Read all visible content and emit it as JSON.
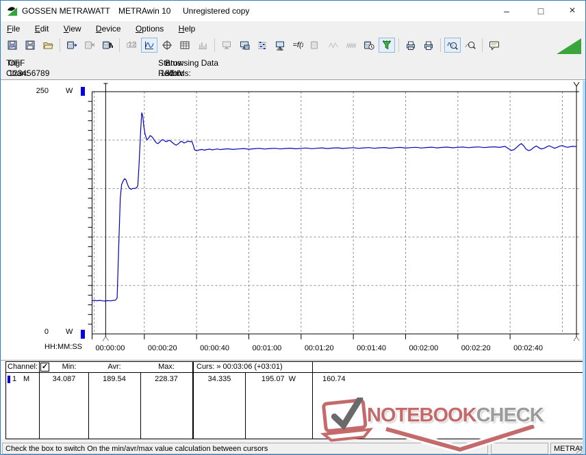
{
  "window": {
    "app_name": "GOSSEN METRAWATT",
    "product": "METRAwin 10",
    "license": "Unregistered copy",
    "minimize": "–",
    "maximize": "□",
    "close": "×"
  },
  "menu": {
    "items": [
      "File",
      "Edit",
      "View",
      "Device",
      "Options",
      "Help"
    ]
  },
  "toolbar": {
    "groups": [
      [
        {
          "name": "save-curve-button",
          "icon": "savewave",
          "state": "normal"
        },
        {
          "name": "save-button",
          "icon": "disk",
          "state": "normal"
        },
        {
          "name": "open-button",
          "icon": "folder",
          "state": "normal"
        }
      ],
      [
        {
          "name": "device-read-button",
          "icon": "devarrow",
          "state": "normal"
        },
        {
          "name": "device-stop-button",
          "icon": "devx",
          "state": "disabled"
        },
        {
          "name": "device-memory-button",
          "icon": "devm",
          "state": "normal"
        }
      ],
      [
        {
          "name": "lcd-view-button",
          "icon": "lcd",
          "state": "disabled"
        },
        {
          "name": "chart-view-button",
          "icon": "wave",
          "state": "pressed"
        },
        {
          "name": "xy-view-button",
          "icon": "cross",
          "state": "normal"
        },
        {
          "name": "table-view-button",
          "icon": "grid",
          "state": "normal"
        },
        {
          "name": "bargraph-view-button",
          "icon": "bars",
          "state": "disabled"
        }
      ],
      [
        {
          "name": "monitor-export-button",
          "icon": "monitor",
          "state": "disabled"
        },
        {
          "name": "monitor-save-button",
          "icon": "monitordisk",
          "state": "normal"
        },
        {
          "name": "channel-list-button",
          "icon": "chanlist",
          "state": "normal"
        },
        {
          "name": "monitor-settings-button",
          "icon": "monitorslide",
          "state": "normal"
        },
        {
          "name": "formula-button",
          "icon": "fx",
          "state": "normal"
        },
        {
          "name": "device-settings-button",
          "icon": "devgray",
          "state": "disabled"
        },
        {
          "name": "wave-low-button",
          "icon": "wavesm",
          "state": "disabled"
        },
        {
          "name": "wave-dense-button",
          "icon": "wavedense",
          "state": "disabled"
        },
        {
          "name": "timer-button",
          "icon": "devclock",
          "state": "normal"
        },
        {
          "name": "filter-button",
          "icon": "funnel",
          "state": "pressed"
        }
      ],
      [
        {
          "name": "print-preview-button",
          "icon": "printlist",
          "state": "normal"
        },
        {
          "name": "print-button",
          "icon": "printer",
          "state": "normal"
        }
      ],
      [
        {
          "name": "zoom-fit-button",
          "icon": "zoomwave",
          "state": "pressed"
        },
        {
          "name": "zoom-select-button",
          "icon": "zoomsel",
          "state": "normal"
        }
      ],
      [
        {
          "name": "annotation-button",
          "icon": "bubble",
          "state": "normal"
        }
      ]
    ]
  },
  "infobar": {
    "trig_label": "Trig:",
    "trig_value": "OFF",
    "chan_label": "Chan:",
    "chan_value": "123456789",
    "status_label": "Status:",
    "status_value": "Browsing Data",
    "records_label": "Records:",
    "records_value": "187",
    "intrv_label": "Intrv.",
    "intrv_value": "1.0"
  },
  "chart_data": {
    "type": "line",
    "unit": "W",
    "ylim": [
      0,
      250
    ],
    "y_tick_labels": [
      "250",
      "0"
    ],
    "y_unit_label": "W",
    "x_axis_label": "HH:MM:SS",
    "x_tick_seconds": [
      0,
      20,
      40,
      60,
      80,
      100,
      120,
      140,
      160
    ],
    "x_tick_labels": [
      "00:00:00",
      "00:00:20",
      "00:00:40",
      "00:01:00",
      "00:01:20",
      "00:01:40",
      "00:02:00",
      "00:02:20",
      "00:02:40"
    ],
    "grid": true,
    "line_color": "#0000bd",
    "cursors": {
      "cursor1_s": 5.2,
      "cursor2_s": 185.4
    },
    "series": [
      {
        "name": "channel-1",
        "points": [
          [
            0,
            34.4
          ],
          [
            1,
            34.6
          ],
          [
            2,
            34.2
          ],
          [
            3,
            34.6
          ],
          [
            4,
            34.1
          ],
          [
            5,
            33.9
          ],
          [
            6,
            34.3
          ],
          [
            7,
            34.1
          ],
          [
            8,
            34.5
          ],
          [
            9,
            34.8
          ],
          [
            9.6,
            37
          ],
          [
            10.2,
            90
          ],
          [
            10.8,
            140
          ],
          [
            11.3,
            154
          ],
          [
            12,
            158.5
          ],
          [
            12.5,
            160.2
          ],
          [
            13,
            158.8
          ],
          [
            13.6,
            154
          ],
          [
            14.2,
            150.5
          ],
          [
            15,
            149.2
          ],
          [
            15.6,
            150.3
          ],
          [
            16.2,
            150.0
          ],
          [
            17,
            150.8
          ],
          [
            17.5,
            153
          ],
          [
            18,
            176
          ],
          [
            18.6,
            210
          ],
          [
            19,
            228.4
          ],
          [
            19.4,
            225
          ],
          [
            19.8,
            214
          ],
          [
            20.3,
            206
          ],
          [
            21,
            200.3
          ],
          [
            21.6,
            201.8
          ],
          [
            22.2,
            204.6
          ],
          [
            22.8,
            203.8
          ],
          [
            23.4,
            201.8
          ],
          [
            24,
            199.2
          ],
          [
            24.6,
            197.2
          ],
          [
            25.2,
            196.4
          ],
          [
            25.8,
            197.8
          ],
          [
            26.4,
            199.6
          ],
          [
            27,
            200.6
          ],
          [
            27.6,
            199.8
          ],
          [
            28.2,
            198.4
          ],
          [
            28.8,
            198.8
          ],
          [
            29.4,
            199.8
          ],
          [
            30,
            199.2
          ],
          [
            30.8,
            197.4
          ],
          [
            31.6,
            195.6
          ],
          [
            32.2,
            194.8
          ],
          [
            32.8,
            195.8
          ],
          [
            33.4,
            197.2
          ],
          [
            34,
            198.8
          ],
          [
            34.6,
            198.2
          ],
          [
            35.2,
            197
          ],
          [
            35.8,
            197.6
          ],
          [
            36.4,
            198.6
          ],
          [
            37,
            198.9
          ],
          [
            37.6,
            198.4
          ],
          [
            38.2,
            198.7
          ],
          [
            38.7,
            195
          ],
          [
            39.2,
            190.2
          ],
          [
            40,
            189
          ],
          [
            41,
            189.9
          ],
          [
            42,
            190.4
          ],
          [
            43,
            189.6
          ],
          [
            44,
            190.3
          ],
          [
            45,
            190.7
          ],
          [
            46,
            190
          ],
          [
            47,
            190.5
          ],
          [
            48,
            190.9
          ],
          [
            49,
            190.2
          ],
          [
            50,
            190.6
          ],
          [
            52,
            191
          ],
          [
            54,
            190.4
          ],
          [
            56,
            190.9
          ],
          [
            58,
            191.3
          ],
          [
            60,
            190.6
          ],
          [
            62,
            191.1
          ],
          [
            64,
            191.5
          ],
          [
            66,
            190.8
          ],
          [
            68,
            191.3
          ],
          [
            70,
            191.6
          ],
          [
            72,
            190.9
          ],
          [
            74,
            191.4
          ],
          [
            76,
            191.7
          ],
          [
            78,
            191
          ],
          [
            80,
            191.5
          ],
          [
            82,
            191.9
          ],
          [
            84,
            191.2
          ],
          [
            86,
            191.6
          ],
          [
            88,
            192
          ],
          [
            90,
            191.3
          ],
          [
            92,
            191.8
          ],
          [
            94,
            192.1
          ],
          [
            96,
            191.4
          ],
          [
            98,
            191.9
          ],
          [
            100,
            192.2
          ],
          [
            102,
            191.5
          ],
          [
            104,
            192
          ],
          [
            106,
            192.3
          ],
          [
            108,
            191.6
          ],
          [
            110,
            192.1
          ],
          [
            112,
            192.4
          ],
          [
            114,
            191.7
          ],
          [
            116,
            192.2
          ],
          [
            118,
            192.5
          ],
          [
            120,
            191.8
          ],
          [
            122,
            192.3
          ],
          [
            124,
            192.6
          ],
          [
            126,
            191.9
          ],
          [
            128,
            192.4
          ],
          [
            130,
            192.7
          ],
          [
            132,
            192
          ],
          [
            134,
            192.5
          ],
          [
            136,
            192.8
          ],
          [
            138,
            192.1
          ],
          [
            140,
            192.6
          ],
          [
            142,
            192.9
          ],
          [
            144,
            192.2
          ],
          [
            146,
            192.7
          ],
          [
            148,
            193
          ],
          [
            150,
            192.3
          ],
          [
            152,
            192.8
          ],
          [
            154,
            193.1
          ],
          [
            156,
            192.5
          ],
          [
            158,
            193.6
          ],
          [
            159.5,
            191
          ],
          [
            160.5,
            189.4
          ],
          [
            161.5,
            190.2
          ],
          [
            162.5,
            192.5
          ],
          [
            163.5,
            195
          ],
          [
            164.3,
            196.4
          ],
          [
            165.2,
            194.2
          ],
          [
            166,
            191
          ],
          [
            167,
            189.2
          ],
          [
            168,
            190
          ],
          [
            169,
            192.4
          ],
          [
            170,
            194
          ],
          [
            171,
            192.2
          ],
          [
            172,
            190.9
          ],
          [
            173,
            191.6
          ],
          [
            174,
            193
          ],
          [
            175,
            194.2
          ],
          [
            176,
            192.9
          ],
          [
            177,
            191.6
          ],
          [
            178,
            192.6
          ],
          [
            179,
            193.8
          ],
          [
            180,
            194.4
          ],
          [
            181,
            193.2
          ],
          [
            182,
            192.6
          ],
          [
            183,
            193.2
          ],
          [
            184,
            193.6
          ],
          [
            185.5,
            193.3
          ]
        ]
      }
    ]
  },
  "measure_table": {
    "header": {
      "channel": "Channel:",
      "checkbox_checked": true,
      "min": "Min:",
      "avr": "Avr:",
      "max": "Max:",
      "curs": "Curs: » 00:03:06 (+03:01)"
    },
    "row": {
      "channel": "1",
      "mode": "M",
      "min": "34.087",
      "avr": "189.54",
      "max": "228.37",
      "curs1": "34.335",
      "curs2": "195.07  W",
      "delta": "160.74"
    }
  },
  "statusbar": {
    "hint": "Check the box to switch On the min/avr/max value calculation between cursors",
    "device": "METRAHit Starline-Seri"
  },
  "watermark": {
    "part1": "NOTEBOOK",
    "part2": "CHECK"
  },
  "colors": {
    "accent_border": "#2e7fc4",
    "curve": "#0000bd",
    "channel_marker": "#0000e0",
    "watermark_red": "#c46a6a",
    "watermark_gray": "#9b9b9b",
    "triangle_green": "#3aa53a"
  }
}
